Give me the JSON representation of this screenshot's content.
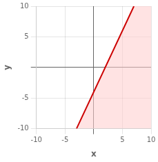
{
  "chart_data": {
    "type": "line",
    "xlabel": "x",
    "ylabel": "y",
    "xlim": [
      -10,
      10
    ],
    "ylim": [
      -10,
      10
    ],
    "xticks": [
      -10,
      -5,
      {
        "value": 0,
        "label": ""
      },
      5,
      10
    ],
    "yticks": [
      -10,
      -5,
      {
        "value": 0,
        "label": ""
      },
      5,
      10
    ],
    "grid": true,
    "series": [
      {
        "x": [
          -3,
          7
        ],
        "values": [
          -10,
          10
        ],
        "color": "#cc0000"
      },
      {
        "type": "area",
        "x": [
          -3,
          7,
          10,
          10
        ],
        "values": [
          -10,
          10,
          10,
          -10
        ],
        "color": "#ffcccc"
      }
    ]
  }
}
